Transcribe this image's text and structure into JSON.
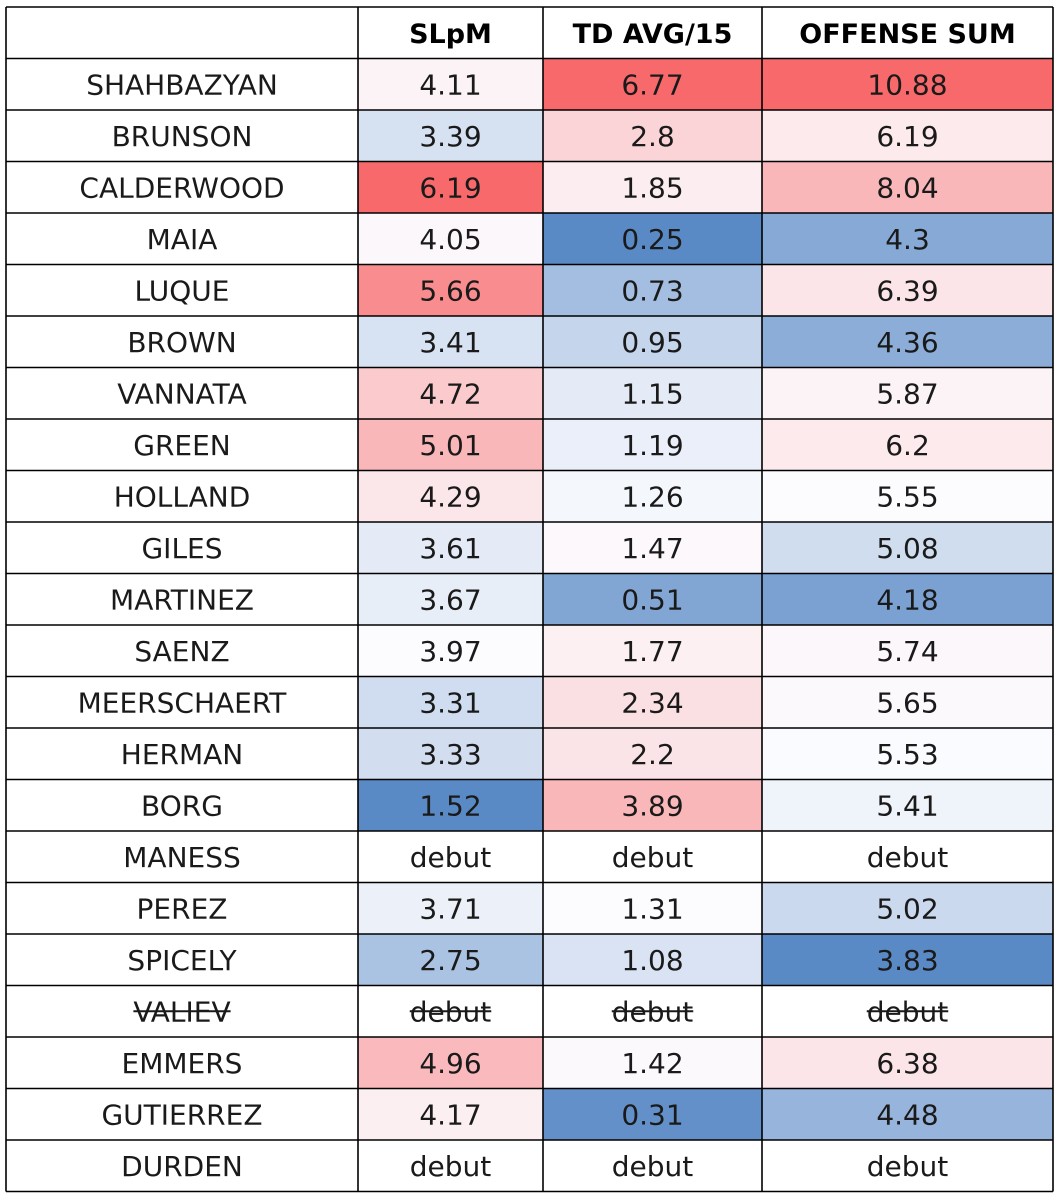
{
  "chart_data": {
    "type": "table",
    "columns": [
      "",
      "SLpM",
      "TD AVG/15",
      "OFFENSE SUM"
    ],
    "rows": [
      {
        "name": "SHAHBAZYAN",
        "values": [
          "4.11",
          "6.77",
          "10.88"
        ],
        "struck": false
      },
      {
        "name": "BRUNSON",
        "values": [
          "3.39",
          "2.8",
          "6.19"
        ],
        "struck": false
      },
      {
        "name": "CALDERWOOD",
        "values": [
          "6.19",
          "1.85",
          "8.04"
        ],
        "struck": false
      },
      {
        "name": "MAIA",
        "values": [
          "4.05",
          "0.25",
          "4.3"
        ],
        "struck": false
      },
      {
        "name": "LUQUE",
        "values": [
          "5.66",
          "0.73",
          "6.39"
        ],
        "struck": false
      },
      {
        "name": "BROWN",
        "values": [
          "3.41",
          "0.95",
          "4.36"
        ],
        "struck": false
      },
      {
        "name": "VANNATA",
        "values": [
          "4.72",
          "1.15",
          "5.87"
        ],
        "struck": false
      },
      {
        "name": "GREEN",
        "values": [
          "5.01",
          "1.19",
          "6.2"
        ],
        "struck": false
      },
      {
        "name": "HOLLAND",
        "values": [
          "4.29",
          "1.26",
          "5.55"
        ],
        "struck": false
      },
      {
        "name": "GILES",
        "values": [
          "3.61",
          "1.47",
          "5.08"
        ],
        "struck": false
      },
      {
        "name": "MARTINEZ",
        "values": [
          "3.67",
          "0.51",
          "4.18"
        ],
        "struck": false
      },
      {
        "name": "SAENZ",
        "values": [
          "3.97",
          "1.77",
          "5.74"
        ],
        "struck": false
      },
      {
        "name": "MEERSCHAERT",
        "values": [
          "3.31",
          "2.34",
          "5.65"
        ],
        "struck": false
      },
      {
        "name": "HERMAN",
        "values": [
          "3.33",
          "2.2",
          "5.53"
        ],
        "struck": false
      },
      {
        "name": "BORG",
        "values": [
          "1.52",
          "3.89",
          "5.41"
        ],
        "struck": false
      },
      {
        "name": "MANESS",
        "values": [
          "debut",
          "debut",
          "debut"
        ],
        "struck": false
      },
      {
        "name": "PEREZ",
        "values": [
          "3.71",
          "1.31",
          "5.02"
        ],
        "struck": false
      },
      {
        "name": "SPICELY",
        "values": [
          "2.75",
          "1.08",
          "3.83"
        ],
        "struck": false
      },
      {
        "name": "VALIEV",
        "values": [
          "debut",
          "debut",
          "debut"
        ],
        "struck": true
      },
      {
        "name": "EMMERS",
        "values": [
          "4.96",
          "1.42",
          "6.38"
        ],
        "struck": false
      },
      {
        "name": "GUTIERREZ",
        "values": [
          "4.17",
          "0.31",
          "4.48"
        ],
        "struck": false
      },
      {
        "name": "DURDEN",
        "values": [
          "debut",
          "debut",
          "debut"
        ],
        "struck": false
      }
    ],
    "color_scale": {
      "low": "#5a8ac6",
      "mid": "#fcfcff",
      "high": "#f8696b"
    }
  }
}
